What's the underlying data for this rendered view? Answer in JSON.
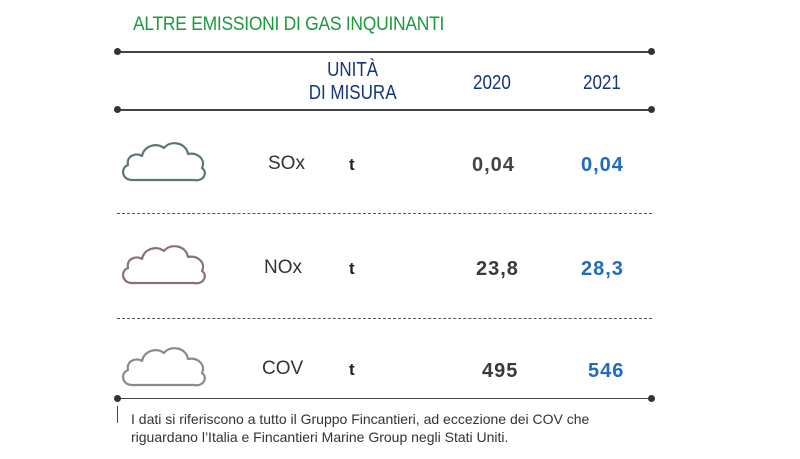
{
  "title": "ALTRE EMISSIONI DI GAS INQUINANTI",
  "header": {
    "unit_line1": "UNITÀ",
    "unit_line2": "DI MISURA",
    "year1": "2020",
    "year2": "2021"
  },
  "rows": [
    {
      "pollutant": "SOx",
      "unit": "t",
      "v2020": "0,04",
      "v2021": "0,04",
      "icon": "cloud-icon",
      "icon_color": "#5f7478"
    },
    {
      "pollutant": "NOx",
      "unit": "t",
      "v2020": "23,8",
      "v2021": "28,3",
      "icon": "cloud-icon",
      "icon_color": "#8a6f7c"
    },
    {
      "pollutant": "COV",
      "unit": "t",
      "v2020": "495",
      "v2021": "546",
      "icon": "cloud-icon",
      "icon_color": "#8a8a8a"
    }
  ],
  "note": {
    "line1": "I dati si riferiscono a tutto il Gruppo Fincantieri, ad eccezione dei COV che",
    "line2": "riguardano l’Italia e Fincantieri Marine Group negli Stati Uniti."
  },
  "colors": {
    "title": "#1a9a3a",
    "header": "#14357a",
    "value_2021": "#1e6bbf"
  }
}
